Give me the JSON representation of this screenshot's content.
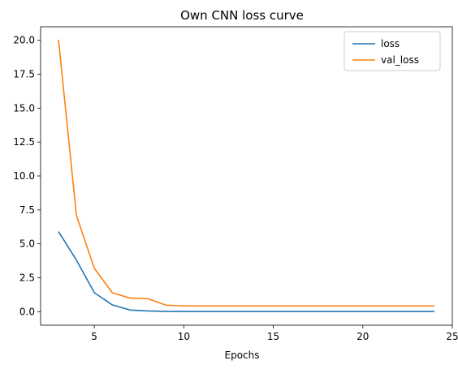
{
  "chart_data": {
    "type": "line",
    "title": "Own CNN loss curve",
    "xlabel": "Epochs",
    "ylabel": "",
    "xlim": [
      2.0,
      25.0
    ],
    "ylim": [
      -1.0,
      21.0
    ],
    "xticks": [
      5,
      10,
      15,
      20,
      25
    ],
    "yticks": [
      0.0,
      2.5,
      5.0,
      7.5,
      10.0,
      12.5,
      15.0,
      17.5,
      20.0
    ],
    "grid": false,
    "legend_position": "top-right",
    "x": [
      3,
      4,
      5,
      6,
      7,
      8,
      9,
      10,
      11,
      12,
      13,
      14,
      15,
      16,
      17,
      18,
      19,
      20,
      21,
      22,
      23,
      24
    ],
    "series": [
      {
        "name": "loss",
        "color": "#1f77b4",
        "values": [
          5.9,
          3.8,
          1.4,
          0.5,
          0.12,
          0.05,
          0.02,
          0.01,
          0.01,
          0.01,
          0.01,
          0.01,
          0.01,
          0.01,
          0.01,
          0.01,
          0.01,
          0.01,
          0.01,
          0.01,
          0.01,
          0.01
        ]
      },
      {
        "name": "val_loss",
        "color": "#ff7f0e",
        "values": [
          20.05,
          7.1,
          3.2,
          1.4,
          1.0,
          0.95,
          0.48,
          0.42,
          0.42,
          0.42,
          0.42,
          0.42,
          0.42,
          0.42,
          0.42,
          0.42,
          0.42,
          0.42,
          0.42,
          0.42,
          0.42,
          0.42
        ]
      }
    ]
  }
}
